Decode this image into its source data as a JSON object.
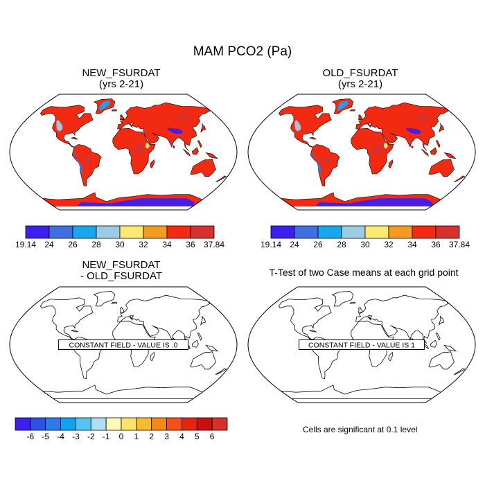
{
  "title": "MAM PCO2 (Pa)",
  "panels": [
    {
      "id": "new",
      "title_line1": "NEW_FSURDAT",
      "title_line2": "(yrs 2-21)",
      "kind": "field"
    },
    {
      "id": "old",
      "title_line1": "OLD_FSURDAT",
      "title_line2": "(yrs 2-21)",
      "kind": "field"
    },
    {
      "id": "diff",
      "title_line1": "NEW_FSURDAT",
      "title_line2": "- OLD_FSURDAT",
      "kind": "constant",
      "note": "CONSTANT FIELD - VALUE IS .0"
    },
    {
      "id": "ttest",
      "title_line1": "T-Test of two Case means at each grid point",
      "title_line2": "",
      "kind": "constant",
      "note": "CONSTANT FIELD - VALUE IS 1"
    }
  ],
  "colorbar_field": {
    "colors": [
      "#3c1ef0",
      "#3f6fe0",
      "#18a7ee",
      "#9bcce6",
      "#fbea6f",
      "#f59b20",
      "#f22a12",
      "#d6312c"
    ],
    "labels": [
      "19.14",
      "24",
      "26",
      "28",
      "30",
      "32",
      "34",
      "36",
      "37.84"
    ]
  },
  "colorbar_diff": {
    "colors": [
      "#3c1ef0",
      "#2d51e6",
      "#2b7ce8",
      "#12a2f0",
      "#55c4f2",
      "#aedff5",
      "#fff9b6",
      "#fde36a",
      "#f7bc2e",
      "#f58a1a",
      "#f2521a",
      "#e8240f",
      "#c8110e",
      "#d6312c"
    ],
    "labels": [
      "-6",
      "-5",
      "-4",
      "-3",
      "-2",
      "-1",
      "0",
      "1",
      "2",
      "3",
      "4",
      "5",
      "6"
    ]
  },
  "significance_note": "Cells are significant at 0.1 level"
}
